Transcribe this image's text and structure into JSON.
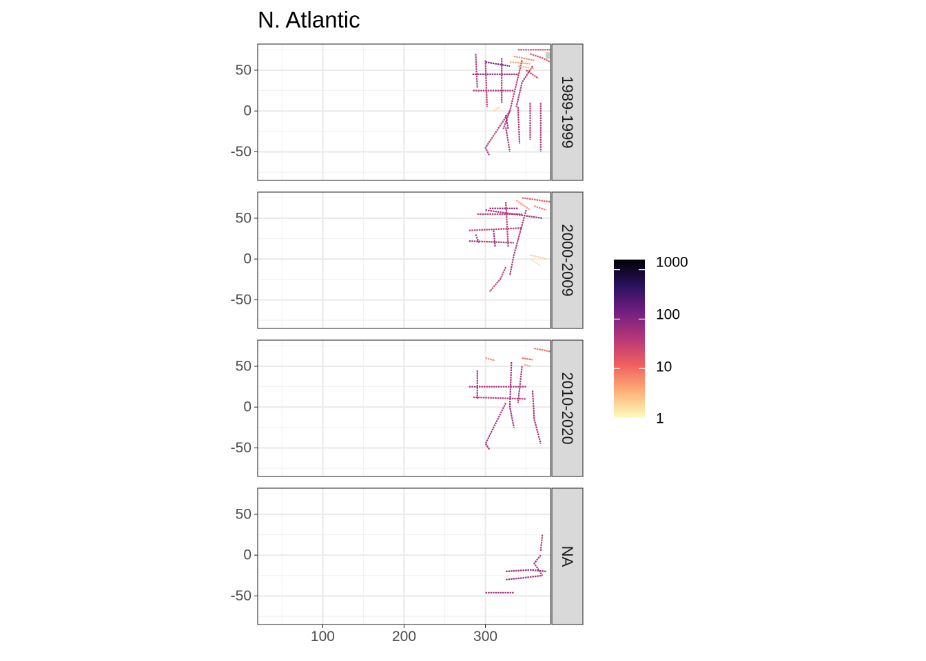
{
  "chart_data": {
    "type": "heatmap",
    "title": "N. Atlantic",
    "xlabel": "",
    "ylabel": "",
    "x_ticks": [
      100,
      200,
      300
    ],
    "y_ticks": [
      50,
      0,
      -50
    ],
    "xlim": [
      20,
      380
    ],
    "ylim": [
      -85,
      82
    ],
    "grid": true,
    "colorbar": {
      "scale": "log",
      "ticks": [
        "1000",
        "100",
        "10",
        "1"
      ],
      "tick_values": [
        1000,
        100,
        10,
        1
      ],
      "range": [
        1,
        1600
      ],
      "palette": [
        "#fcfdbf",
        "#feb078",
        "#f1605d",
        "#b73779",
        "#721f81",
        "#2c115f",
        "#000004"
      ],
      "placement": "right"
    },
    "land_color": "#cccccc",
    "strip_color": "#d9d9d9",
    "panels": [
      {
        "label": "1989-1999",
        "tracks": [
          {
            "pts": [
              [
                288,
                70
              ],
              [
                290,
                28
              ]
            ],
            "v": 40
          },
          {
            "pts": [
              [
                284,
                45
              ],
              [
                340,
                45
              ]
            ],
            "v": 60
          },
          {
            "pts": [
              [
                285,
                25
              ],
              [
                335,
                25
              ]
            ],
            "v": 45
          },
          {
            "pts": [
              [
                300,
                62
              ],
              [
                302,
                5
              ]
            ],
            "v": 35
          },
          {
            "pts": [
              [
                320,
                65
              ],
              [
                320,
                10
              ]
            ],
            "v": 50
          },
          {
            "pts": [
              [
                345,
                62
              ],
              [
                330,
                0
              ],
              [
                322,
                -22
              ]
            ],
            "v": 40
          },
          {
            "pts": [
              [
                358,
                55
              ],
              [
                345,
                35
              ],
              [
                338,
                5
              ]
            ],
            "v": 50
          },
          {
            "pts": [
              [
                368,
                10
              ],
              [
                368,
                -50
              ]
            ],
            "v": 45
          },
          {
            "pts": [
              [
                355,
                10
              ],
              [
                355,
                -35
              ]
            ],
            "v": 40
          },
          {
            "pts": [
              [
                340,
                5
              ],
              [
                342,
                -40
              ]
            ],
            "v": 45
          },
          {
            "pts": [
              [
                325,
                -5
              ],
              [
                328,
                -22
              ]
            ],
            "v": 80
          },
          {
            "pts": [
              [
                330,
                0
              ],
              [
                300,
                -45
              ],
              [
                305,
                -55
              ]
            ],
            "v": 35
          },
          {
            "pts": [
              [
                325,
                -20
              ],
              [
                330,
                -50
              ]
            ],
            "v": 40
          },
          {
            "pts": [
              [
                340,
                75
              ],
              [
                380,
                75
              ]
            ],
            "v": 25
          },
          {
            "pts": [
              [
                355,
                70
              ],
              [
                370,
                65
              ],
              [
                380,
                60
              ]
            ],
            "v": 18
          },
          {
            "pts": [
              [
                335,
                67
              ],
              [
                360,
                62
              ]
            ],
            "v": 6
          },
          {
            "pts": [
              [
                330,
                60
              ],
              [
                355,
                58
              ]
            ],
            "v": 4
          },
          {
            "pts": [
              [
                340,
                55
              ],
              [
                360,
                52
              ]
            ],
            "v": 3
          },
          {
            "pts": [
              [
                300,
                60
              ],
              [
                330,
                55
              ]
            ],
            "v": 120
          },
          {
            "pts": [
              [
                350,
                50
              ],
              [
                365,
                40
              ]
            ],
            "v": 30
          },
          {
            "pts": [
              [
                310,
                0
              ],
              [
                318,
                5
              ]
            ],
            "v": 2
          }
        ]
      },
      {
        "label": "2000-2009",
        "tracks": [
          {
            "pts": [
              [
                290,
                55
              ],
              [
                345,
                55
              ]
            ],
            "v": 30
          },
          {
            "pts": [
              [
                300,
                60
              ],
              [
                370,
                50
              ]
            ],
            "v": 50
          },
          {
            "pts": [
              [
                280,
                35
              ],
              [
                345,
                38
              ]
            ],
            "v": 35
          },
          {
            "pts": [
              [
                280,
                22
              ],
              [
                335,
                20
              ]
            ],
            "v": 40
          },
          {
            "pts": [
              [
                288,
                30
              ],
              [
                292,
                20
              ]
            ],
            "v": 55
          },
          {
            "pts": [
              [
                325,
                70
              ],
              [
                328,
                15
              ]
            ],
            "v": 35
          },
          {
            "pts": [
              [
                350,
                60
              ],
              [
                335,
                5
              ],
              [
                330,
                -20
              ]
            ],
            "v": 45
          },
          {
            "pts": [
              [
                310,
                35
              ],
              [
                312,
                15
              ]
            ],
            "v": 55
          },
          {
            "pts": [
              [
                325,
                -10
              ],
              [
                318,
                -25
              ],
              [
                305,
                -40
              ]
            ],
            "v": 30
          },
          {
            "pts": [
              [
                345,
                75
              ],
              [
                380,
                70
              ]
            ],
            "v": 15
          },
          {
            "pts": [
              [
                360,
                65
              ],
              [
                375,
                60
              ]
            ],
            "v": 8
          },
          {
            "pts": [
              [
                338,
                72
              ],
              [
                355,
                60
              ]
            ],
            "v": 5
          },
          {
            "pts": [
              [
                355,
                5
              ],
              [
                375,
                0
              ]
            ],
            "v": 2
          },
          {
            "pts": [
              [
                355,
                0
              ],
              [
                368,
                -8
              ]
            ],
            "v": 1.5
          },
          {
            "pts": [
              [
                305,
                62
              ],
              [
                340,
                62
              ]
            ],
            "v": 70
          }
        ]
      },
      {
        "label": "2010-2020",
        "tracks": [
          {
            "pts": [
              [
                280,
                25
              ],
              [
                350,
                25
              ]
            ],
            "v": 50
          },
          {
            "pts": [
              [
                285,
                12
              ],
              [
                350,
                10
              ]
            ],
            "v": 40
          },
          {
            "pts": [
              [
                290,
                45
              ],
              [
                290,
                10
              ]
            ],
            "v": 50
          },
          {
            "pts": [
              [
                332,
                55
              ],
              [
                330,
                0
              ],
              [
                335,
                -25
              ]
            ],
            "v": 60
          },
          {
            "pts": [
              [
                345,
                50
              ],
              [
                340,
                5
              ]
            ],
            "v": 40
          },
          {
            "pts": [
              [
                325,
                5
              ],
              [
                300,
                -45
              ],
              [
                305,
                -52
              ]
            ],
            "v": 50
          },
          {
            "pts": [
              [
                358,
                20
              ],
              [
                360,
                -15
              ],
              [
                368,
                -45
              ]
            ],
            "v": 60
          },
          {
            "pts": [
              [
                345,
                60
              ],
              [
                358,
                58
              ]
            ],
            "v": 12
          },
          {
            "pts": [
              [
                360,
                72
              ],
              [
                380,
                68
              ]
            ],
            "v": 10
          },
          {
            "pts": [
              [
                300,
                60
              ],
              [
                312,
                57
              ]
            ],
            "v": 6
          },
          {
            "pts": [
              [
                348,
                52
              ],
              [
                355,
                50
              ]
            ],
            "v": 4
          }
        ]
      },
      {
        "label": "NA",
        "tracks": [
          {
            "pts": [
              [
                325,
                -20
              ],
              [
                355,
                -18
              ],
              [
                375,
                -20
              ]
            ],
            "v": 70
          },
          {
            "pts": [
              [
                325,
                -30
              ],
              [
                345,
                -28
              ],
              [
                370,
                -25
              ]
            ],
            "v": 60
          },
          {
            "pts": [
              [
                368,
                0
              ],
              [
                360,
                -10
              ],
              [
                370,
                -25
              ]
            ],
            "v": 45
          },
          {
            "pts": [
              [
                300,
                -46
              ],
              [
                335,
                -46
              ]
            ],
            "v": 50
          },
          {
            "pts": [
              [
                370,
                25
              ],
              [
                368,
                5
              ]
            ],
            "v": 35
          }
        ]
      }
    ]
  }
}
